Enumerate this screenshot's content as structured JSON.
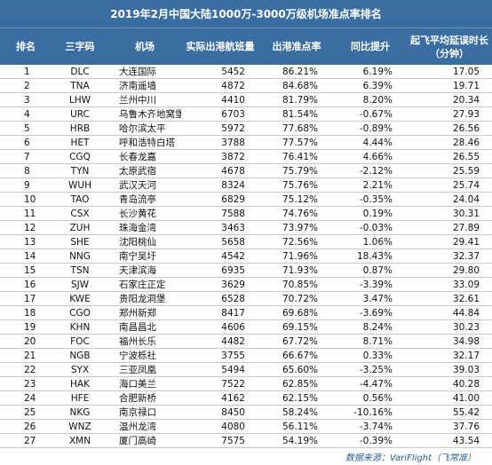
{
  "title": "2019年2月中国大陆1000万-3000万级机场准点率排名",
  "headers": [
    "排名",
    "三字码",
    "机场",
    "实际出港航班量",
    "出港准点率",
    "同比提升",
    "起飞平均延误时长\n（分钟）"
  ],
  "rows": [
    [
      "1",
      "DLC",
      "大连国际",
      "5452",
      "86.21%",
      "6.19%",
      "17.05"
    ],
    [
      "2",
      "TNA",
      "济南遥墙",
      "4872",
      "84.68%",
      "6.39%",
      "19.71"
    ],
    [
      "3",
      "LHW",
      "兰州中川",
      "4410",
      "81.79%",
      "8.20%",
      "20.34"
    ],
    [
      "4",
      "URC",
      "乌鲁木齐地窝堡",
      "6703",
      "81.54%",
      "-0.67%",
      "27.93"
    ],
    [
      "5",
      "HRB",
      "哈尔滨太平",
      "5972",
      "77.68%",
      "-0.89%",
      "26.56"
    ],
    [
      "6",
      "HET",
      "呼和浩特白塔",
      "3788",
      "77.57%",
      "4.44%",
      "28.46"
    ],
    [
      "7",
      "CGQ",
      "长春龙嘉",
      "3872",
      "76.41%",
      "4.66%",
      "26.55"
    ],
    [
      "8",
      "TYN",
      "太原武宿",
      "4678",
      "75.79%",
      "-2.12%",
      "25.59"
    ],
    [
      "9",
      "WUH",
      "武汉天河",
      "8324",
      "75.76%",
      "2.21%",
      "25.74"
    ],
    [
      "10",
      "TAO",
      "青岛流亭",
      "6829",
      "75.12%",
      "-0.35%",
      "24.04"
    ],
    [
      "11",
      "CSX",
      "长沙黄花",
      "7588",
      "74.76%",
      "0.19%",
      "30.31"
    ],
    [
      "12",
      "ZUH",
      "珠海金湾",
      "3463",
      "73.97%",
      "-0.03%",
      "27.89"
    ],
    [
      "13",
      "SHE",
      "沈阳桃仙",
      "5658",
      "72.56%",
      "1.06%",
      "29.41"
    ],
    [
      "14",
      "NNG",
      "南宁吴圩",
      "4542",
      "71.96%",
      "18.43%",
      "32.37"
    ],
    [
      "15",
      "TSN",
      "天津滨海",
      "6935",
      "71.93%",
      "0.87%",
      "29.80"
    ],
    [
      "16",
      "SJW",
      "石家庄正定",
      "3629",
      "70.85%",
      "-3.39%",
      "33.09"
    ],
    [
      "17",
      "KWE",
      "贵阳龙洞堡",
      "6528",
      "70.72%",
      "3.47%",
      "32.61"
    ],
    [
      "18",
      "CGO",
      "郑州新郑",
      "8417",
      "69.68%",
      "-3.69%",
      "44.84"
    ],
    [
      "19",
      "KHN",
      "南昌昌北",
      "4606",
      "69.15%",
      "8.24%",
      "30.23"
    ],
    [
      "20",
      "FOC",
      "福州长乐",
      "4482",
      "67.72%",
      "8.71%",
      "34.98"
    ],
    [
      "21",
      "NGB",
      "宁波栎社",
      "3755",
      "66.67%",
      "0.33%",
      "32.17"
    ],
    [
      "22",
      "SYX",
      "三亚凤凰",
      "5494",
      "65.60%",
      "-3.25%",
      "39.03"
    ],
    [
      "23",
      "HAK",
      "海口美兰",
      "7522",
      "62.85%",
      "-4.47%",
      "40.28"
    ],
    [
      "24",
      "HFE",
      "合肥新桥",
      "4162",
      "62.15%",
      "0.56%",
      "41.00"
    ],
    [
      "25",
      "NKG",
      "南京禄口",
      "8450",
      "58.24%",
      "-10.16%",
      "55.42"
    ],
    [
      "26",
      "WNZ",
      "温州龙湾",
      "4080",
      "56.11%",
      "-3.74%",
      "37.76"
    ],
    [
      "27",
      "XMN",
      "厦门高崎",
      "7575",
      "54.19%",
      "-0.39%",
      "43.54"
    ]
  ],
  "source": "数据来源：VariFlight（飞常准）"
}
